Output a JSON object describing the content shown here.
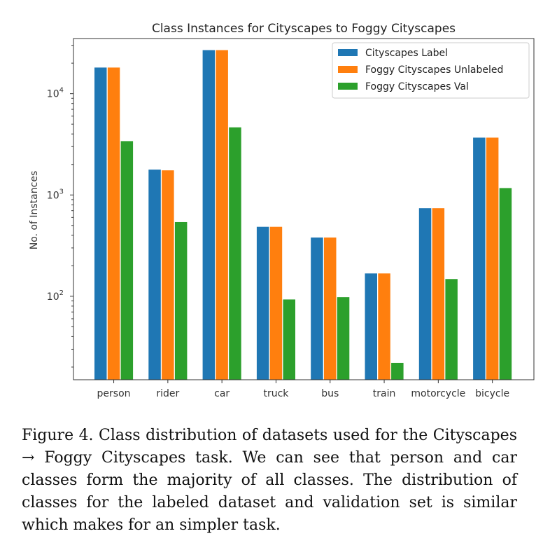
{
  "chart_data": {
    "type": "bar",
    "title": "Class Instances for Cityscapes to Foggy Cityscapes",
    "ylabel": "No. of Instances",
    "xlabel": "",
    "yscale": "log",
    "ylim": [
      15,
      35000
    ],
    "yticks": [
      {
        "value": 100,
        "base": "10",
        "exp": "2"
      },
      {
        "value": 1000,
        "base": "10",
        "exp": "3"
      },
      {
        "value": 10000,
        "base": "10",
        "exp": "4"
      }
    ],
    "legend_position": "top-right",
    "categories": [
      "person",
      "rider",
      "car",
      "truck",
      "bus",
      "train",
      "motorcycle",
      "bicycle"
    ],
    "series": [
      {
        "name": "Cityscapes Label",
        "color": "#1f77b4",
        "values": [
          18100,
          1780,
          26900,
          485,
          380,
          168,
          740,
          3680
        ]
      },
      {
        "name": "Foggy Cityscapes Unlabeled",
        "color": "#ff7f0e",
        "values": [
          18100,
          1750,
          26900,
          485,
          380,
          168,
          740,
          3680
        ]
      },
      {
        "name": "Foggy Cityscapes Val",
        "color": "#2ca02c",
        "values": [
          3400,
          540,
          4650,
          93,
          98,
          22,
          148,
          1170
        ]
      }
    ]
  },
  "caption": "Figure 4. Class distribution of datasets used for the Cityscapes → Foggy Cityscapes task. We can see that person and car classes form the majority of all classes. The distribution of classes for the labeled dataset and validation set is similar which makes for an simpler task."
}
